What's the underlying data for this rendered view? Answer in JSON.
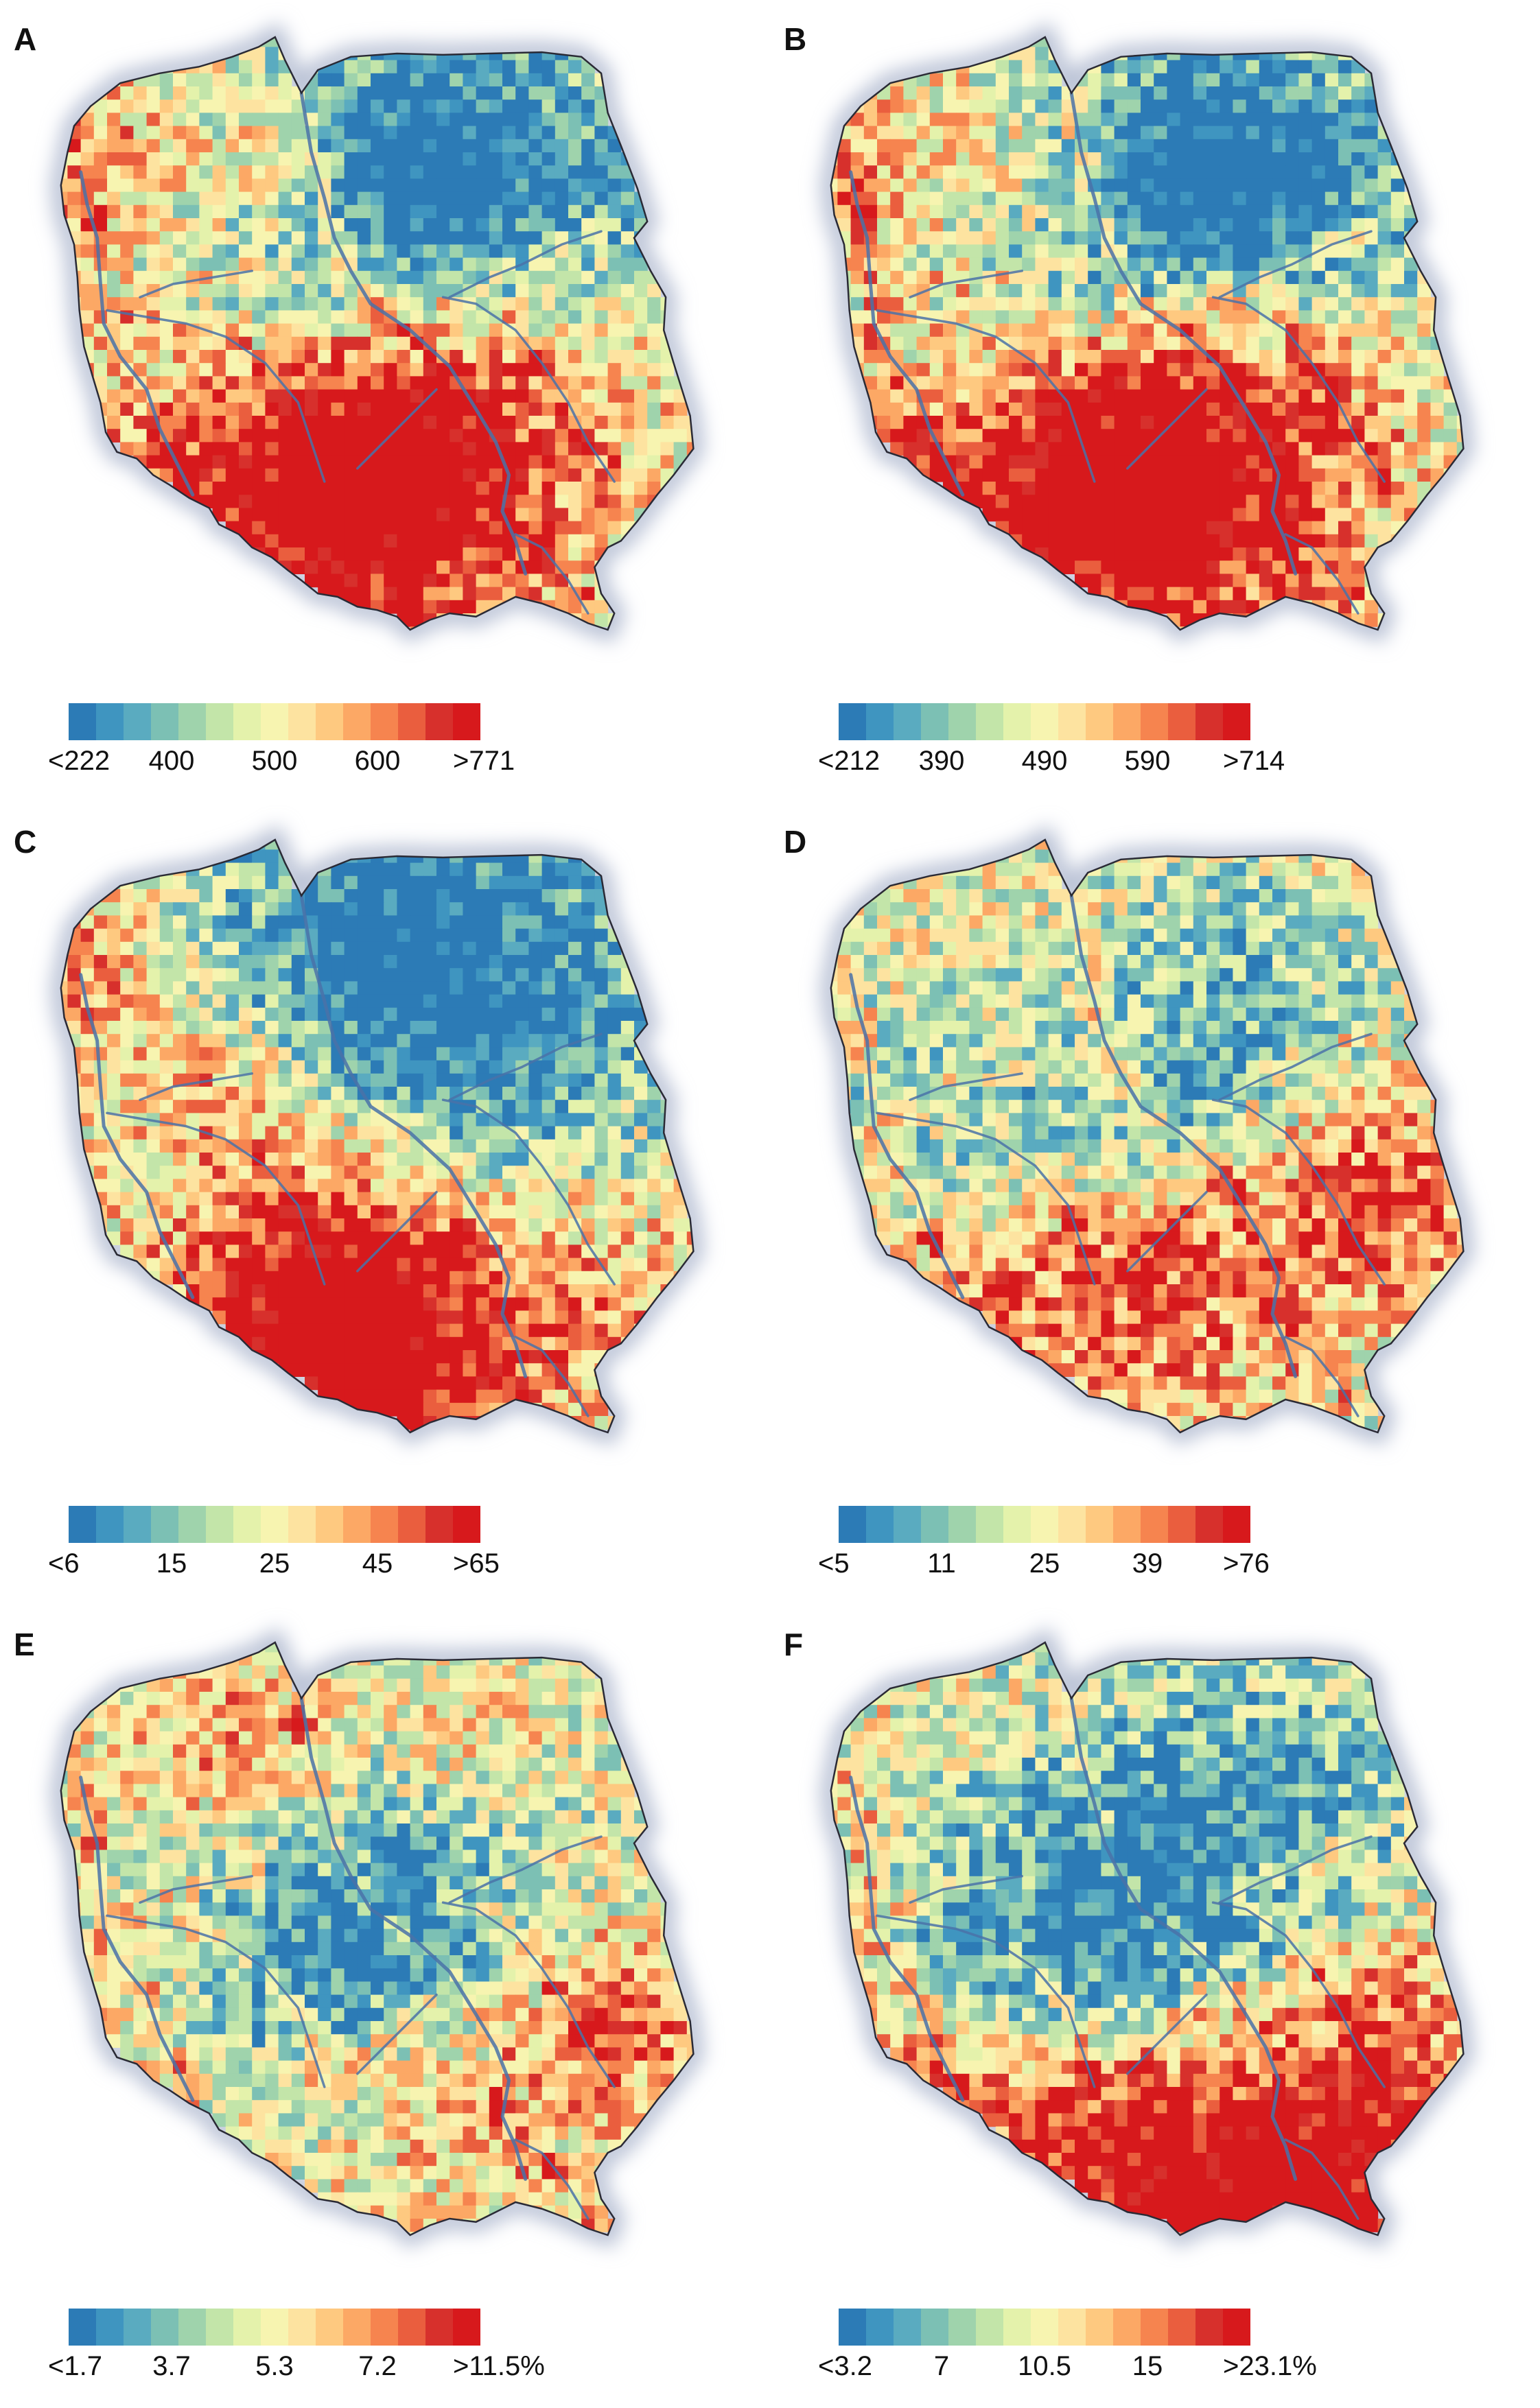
{
  "figure": {
    "panels": [
      {
        "letter": "A",
        "legend_labels": [
          "<222",
          "400",
          "500",
          "600",
          ">771"
        ],
        "seed": 11,
        "hotspots": "A"
      },
      {
        "letter": "B",
        "legend_labels": [
          "<212",
          "390",
          "490",
          "590",
          ">714"
        ],
        "seed": 23,
        "hotspots": "A"
      },
      {
        "letter": "C",
        "legend_labels": [
          "<6",
          "15",
          "25",
          "45",
          ">65"
        ],
        "seed": 37,
        "hotspots": "C"
      },
      {
        "letter": "D",
        "legend_labels": [
          "<5",
          "11",
          "25",
          "39",
          ">76"
        ],
        "seed": 41,
        "hotspots": "D"
      },
      {
        "letter": "E",
        "legend_labels": [
          "<1.7",
          "3.7",
          "5.3",
          "7.2",
          ">11.5%"
        ],
        "seed": 53,
        "hotspots": "E"
      },
      {
        "letter": "F",
        "legend_labels": [
          "<3.2",
          "7",
          "10.5",
          "15",
          ">23.1%"
        ],
        "seed": 67,
        "hotspots": "F"
      }
    ],
    "colors": {
      "scale": [
        "#2c7bb6",
        "#3f95c0",
        "#5aabc0",
        "#7cc0b4",
        "#9fd3ac",
        "#c3e5a9",
        "#e4f2ab",
        "#f7f4b0",
        "#fde3a0",
        "#fec980",
        "#fca865",
        "#f6844f",
        "#ea5e3e",
        "#d7302c",
        "#d7191c"
      ],
      "river": "#4a72a8",
      "halo": "#b7c0d4",
      "outline": "#2a2a35"
    }
  }
}
